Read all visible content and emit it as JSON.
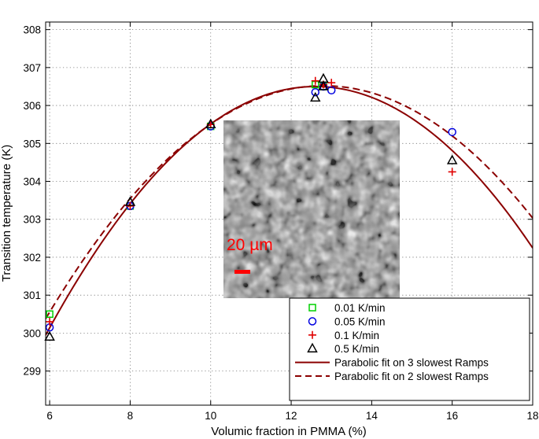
{
  "chart_data": {
    "type": "scatter",
    "xlabel": "Volumic fraction in PMMA (%)",
    "ylabel": "Transition temperature (K)",
    "xlim": [
      5.9,
      18
    ],
    "ylim": [
      298.1,
      308.2
    ],
    "xticks": [
      6,
      8,
      10,
      12,
      14,
      16,
      18
    ],
    "yticks": [
      299,
      300,
      301,
      302,
      303,
      304,
      305,
      306,
      307,
      308
    ],
    "grid": true,
    "legend_position": "bottom-right",
    "series": [
      {
        "name": "0.01 K/min",
        "marker": "square",
        "color": "#00d000",
        "points": [
          [
            6.0,
            300.5
          ],
          [
            8.0,
            303.35
          ],
          [
            10.0,
            305.45
          ],
          [
            12.6,
            306.55
          ],
          [
            12.8,
            306.5
          ]
        ]
      },
      {
        "name": "0.05 K/min",
        "marker": "circle",
        "color": "#0000e0",
        "points": [
          [
            6.0,
            300.15
          ],
          [
            8.0,
            303.35
          ],
          [
            10.0,
            305.45
          ],
          [
            12.6,
            306.35
          ],
          [
            12.8,
            306.5
          ],
          [
            13.0,
            306.4
          ],
          [
            16.0,
            305.3
          ]
        ]
      },
      {
        "name": "0.1 K/min",
        "marker": "plus",
        "color": "#e00000",
        "points": [
          [
            6.0,
            300.3
          ],
          [
            8.0,
            303.35
          ],
          [
            10.0,
            305.5
          ],
          [
            12.6,
            306.65
          ],
          [
            12.8,
            306.55
          ],
          [
            13.0,
            306.6
          ],
          [
            16.0,
            304.25
          ]
        ]
      },
      {
        "name": "0.5 K/min",
        "marker": "triangle",
        "color": "#000000",
        "points": [
          [
            6.0,
            299.9
          ],
          [
            8.0,
            303.45
          ],
          [
            10.0,
            305.5
          ],
          [
            12.6,
            306.2
          ],
          [
            12.8,
            306.7
          ],
          [
            12.8,
            306.5
          ],
          [
            16.0,
            304.55
          ]
        ]
      }
    ],
    "fits": [
      {
        "name": "Parabolic fit on 3 slowest Ramps",
        "style": "solid",
        "color": "#8b0000",
        "vertex_x": 12.6,
        "vertex_y": 306.5,
        "curvature": 0.146
      },
      {
        "name": "Parabolic fit on 2 slowest Ramps",
        "style": "dashed",
        "color": "#8b0000",
        "vertex_x": 12.8,
        "vertex_y": 306.52,
        "curvature": 0.129
      }
    ]
  },
  "inset": {
    "scale_label": "20 µm",
    "scale_color": "#ff0000"
  }
}
